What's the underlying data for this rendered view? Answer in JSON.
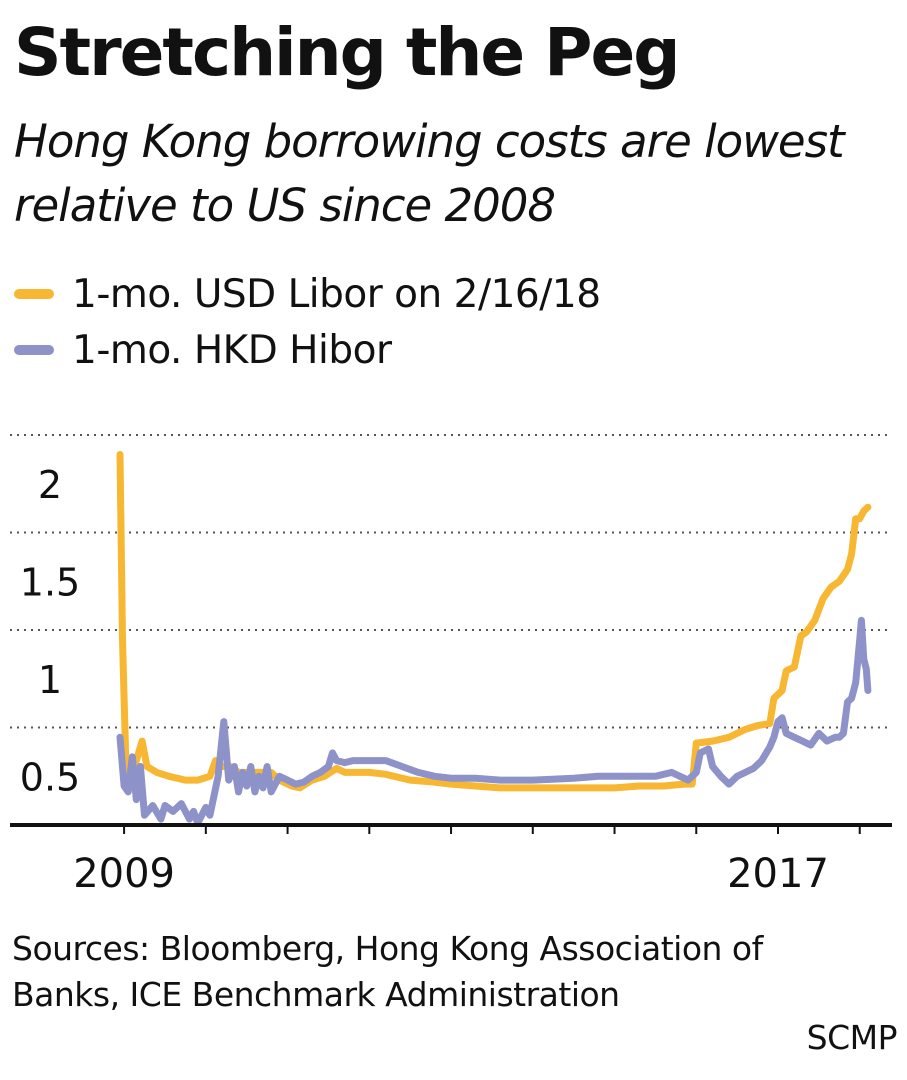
{
  "title": "Stretching the Peg",
  "subtitle": "Hong Kong borrowing costs are lowest relative to US since 2008",
  "legend": [
    {
      "label": "1-mo. USD Libor on 2/16/18",
      "color": "#f7b733"
    },
    {
      "label": "1-mo. HKD Hibor",
      "color": "#8d92c9"
    }
  ],
  "sources": "Sources: Bloomberg, Hong Kong Association of Banks, ICE Benchmark Administration",
  "credit": "SCMP",
  "chart_data": {
    "type": "line",
    "xlim": [
      2008.95,
      2018.15
    ],
    "ylim": [
      0.25,
      2.25
    ],
    "y_ticks": [
      2,
      1.5,
      1,
      0.5
    ],
    "y_tick_labels": [
      "2",
      "1.5",
      "1",
      "0.5"
    ],
    "gridlines_y": [
      2.25,
      1.75,
      1.25,
      0.75
    ],
    "x_ticks": [
      2009,
      2010,
      2011,
      2012,
      2013,
      2014,
      2015,
      2016,
      2017,
      2018
    ],
    "x_tick_labels": [
      {
        "x": 2009,
        "label": "2009"
      },
      {
        "x": 2017,
        "label": "2017"
      }
    ],
    "grid": true,
    "legend_position": "top-left",
    "series": [
      {
        "name": "1-mo. USD Libor on 2/16/18",
        "color": "#f7b733",
        "points": [
          [
            2008.95,
            2.15
          ],
          [
            2008.98,
            1.2
          ],
          [
            2009.02,
            0.6
          ],
          [
            2009.08,
            0.5
          ],
          [
            2009.15,
            0.58
          ],
          [
            2009.22,
            0.68
          ],
          [
            2009.28,
            0.55
          ],
          [
            2009.4,
            0.52
          ],
          [
            2009.55,
            0.5
          ],
          [
            2009.75,
            0.48
          ],
          [
            2009.9,
            0.48
          ],
          [
            2010.05,
            0.5
          ],
          [
            2010.12,
            0.58
          ],
          [
            2010.2,
            0.55
          ],
          [
            2010.3,
            0.55
          ],
          [
            2010.4,
            0.52
          ],
          [
            2010.6,
            0.52
          ],
          [
            2010.8,
            0.52
          ],
          [
            2010.9,
            0.48
          ],
          [
            2011.05,
            0.45
          ],
          [
            2011.15,
            0.44
          ],
          [
            2011.3,
            0.48
          ],
          [
            2011.45,
            0.5
          ],
          [
            2011.6,
            0.54
          ],
          [
            2011.7,
            0.52
          ],
          [
            2011.8,
            0.52
          ],
          [
            2012.0,
            0.52
          ],
          [
            2012.2,
            0.51
          ],
          [
            2012.5,
            0.48
          ],
          [
            2012.8,
            0.47
          ],
          [
            2013.0,
            0.46
          ],
          [
            2013.3,
            0.45
          ],
          [
            2013.6,
            0.44
          ],
          [
            2014.0,
            0.44
          ],
          [
            2014.5,
            0.44
          ],
          [
            2015.0,
            0.44
          ],
          [
            2015.3,
            0.45
          ],
          [
            2015.6,
            0.45
          ],
          [
            2015.85,
            0.46
          ],
          [
            2015.95,
            0.46
          ],
          [
            2016.0,
            0.67
          ],
          [
            2016.2,
            0.68
          ],
          [
            2016.4,
            0.7
          ],
          [
            2016.5,
            0.72
          ],
          [
            2016.6,
            0.74
          ],
          [
            2016.75,
            0.76
          ],
          [
            2016.9,
            0.77
          ],
          [
            2016.95,
            0.9
          ],
          [
            2017.05,
            0.94
          ],
          [
            2017.1,
            1.04
          ],
          [
            2017.2,
            1.06
          ],
          [
            2017.28,
            1.22
          ],
          [
            2017.35,
            1.24
          ],
          [
            2017.45,
            1.3
          ],
          [
            2017.55,
            1.41
          ],
          [
            2017.65,
            1.47
          ],
          [
            2017.75,
            1.5
          ],
          [
            2017.85,
            1.56
          ],
          [
            2017.9,
            1.64
          ],
          [
            2017.95,
            1.82
          ],
          [
            2018.0,
            1.82
          ],
          [
            2018.05,
            1.86
          ],
          [
            2018.1,
            1.88
          ]
        ]
      },
      {
        "name": "1-mo. HKD Hibor",
        "color": "#8d92c9",
        "points": [
          [
            2008.95,
            0.7
          ],
          [
            2009.0,
            0.45
          ],
          [
            2009.05,
            0.42
          ],
          [
            2009.1,
            0.6
          ],
          [
            2009.15,
            0.38
          ],
          [
            2009.2,
            0.55
          ],
          [
            2009.25,
            0.3
          ],
          [
            2009.35,
            0.35
          ],
          [
            2009.45,
            0.28
          ],
          [
            2009.5,
            0.35
          ],
          [
            2009.6,
            0.32
          ],
          [
            2009.7,
            0.36
          ],
          [
            2009.8,
            0.28
          ],
          [
            2009.85,
            0.32
          ],
          [
            2009.9,
            0.26
          ],
          [
            2010.0,
            0.34
          ],
          [
            2010.05,
            0.3
          ],
          [
            2010.1,
            0.4
          ],
          [
            2010.15,
            0.5
          ],
          [
            2010.22,
            0.78
          ],
          [
            2010.28,
            0.48
          ],
          [
            2010.35,
            0.55
          ],
          [
            2010.4,
            0.42
          ],
          [
            2010.45,
            0.52
          ],
          [
            2010.5,
            0.45
          ],
          [
            2010.55,
            0.55
          ],
          [
            2010.6,
            0.42
          ],
          [
            2010.65,
            0.5
          ],
          [
            2010.7,
            0.44
          ],
          [
            2010.75,
            0.55
          ],
          [
            2010.8,
            0.42
          ],
          [
            2010.9,
            0.5
          ],
          [
            2011.0,
            0.48
          ],
          [
            2011.1,
            0.46
          ],
          [
            2011.2,
            0.47
          ],
          [
            2011.3,
            0.5
          ],
          [
            2011.4,
            0.52
          ],
          [
            2011.5,
            0.55
          ],
          [
            2011.55,
            0.62
          ],
          [
            2011.6,
            0.58
          ],
          [
            2011.7,
            0.57
          ],
          [
            2011.8,
            0.58
          ],
          [
            2012.0,
            0.58
          ],
          [
            2012.2,
            0.58
          ],
          [
            2012.4,
            0.55
          ],
          [
            2012.6,
            0.52
          ],
          [
            2012.8,
            0.5
          ],
          [
            2013.0,
            0.49
          ],
          [
            2013.3,
            0.49
          ],
          [
            2013.6,
            0.48
          ],
          [
            2014.0,
            0.48
          ],
          [
            2014.5,
            0.49
          ],
          [
            2014.8,
            0.5
          ],
          [
            2015.2,
            0.5
          ],
          [
            2015.5,
            0.5
          ],
          [
            2015.7,
            0.52
          ],
          [
            2015.8,
            0.5
          ],
          [
            2015.9,
            0.48
          ],
          [
            2016.0,
            0.52
          ],
          [
            2016.05,
            0.62
          ],
          [
            2016.15,
            0.64
          ],
          [
            2016.2,
            0.55
          ],
          [
            2016.3,
            0.5
          ],
          [
            2016.4,
            0.46
          ],
          [
            2016.5,
            0.5
          ],
          [
            2016.6,
            0.52
          ],
          [
            2016.7,
            0.54
          ],
          [
            2016.8,
            0.58
          ],
          [
            2016.9,
            0.65
          ],
          [
            2016.95,
            0.7
          ],
          [
            2017.0,
            0.78
          ],
          [
            2017.05,
            0.8
          ],
          [
            2017.1,
            0.72
          ],
          [
            2017.2,
            0.7
          ],
          [
            2017.3,
            0.68
          ],
          [
            2017.4,
            0.66
          ],
          [
            2017.5,
            0.72
          ],
          [
            2017.6,
            0.68
          ],
          [
            2017.7,
            0.7
          ],
          [
            2017.75,
            0.7
          ],
          [
            2017.8,
            0.72
          ],
          [
            2017.85,
            0.88
          ],
          [
            2017.9,
            0.9
          ],
          [
            2017.95,
            0.98
          ],
          [
            2018.0,
            1.2
          ],
          [
            2018.02,
            1.3
          ],
          [
            2018.05,
            1.1
          ],
          [
            2018.08,
            1.05
          ],
          [
            2018.1,
            0.94
          ]
        ]
      }
    ]
  }
}
